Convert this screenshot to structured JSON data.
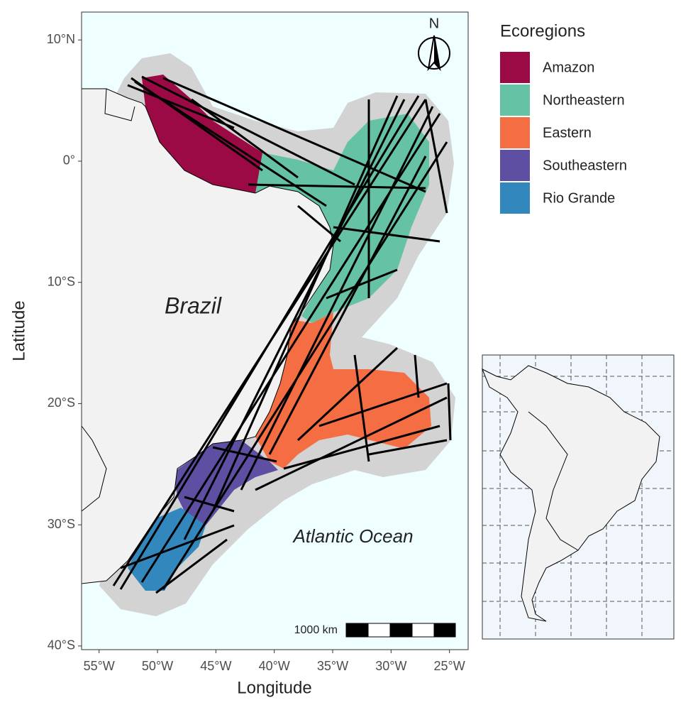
{
  "map": {
    "type": "map",
    "x_label": "Longitude",
    "y_label": "Latitude",
    "xlim": [
      -56.5,
      -23.4
    ],
    "ylim": [
      -40.3,
      12.3
    ],
    "xticks": [
      {
        "value": -55,
        "label": "55°W"
      },
      {
        "value": -50,
        "label": "50°W"
      },
      {
        "value": -45,
        "label": "45°W"
      },
      {
        "value": -40,
        "label": "40°W"
      },
      {
        "value": -35,
        "label": "35°W"
      },
      {
        "value": -30,
        "label": "30°W"
      },
      {
        "value": -25,
        "label": "25°W"
      }
    ],
    "yticks": [
      {
        "value": 10,
        "label": "10°N"
      },
      {
        "value": 0,
        "label": "0°"
      },
      {
        "value": -10,
        "label": "10°S"
      },
      {
        "value": -20,
        "label": "20°S"
      },
      {
        "value": -30,
        "label": "30°S"
      },
      {
        "value": -40,
        "label": "40°S"
      }
    ],
    "legend_title": "Ecoregions",
    "legend": [
      {
        "name": "Amazon",
        "color": "#9b0a45"
      },
      {
        "name": "Northeastern",
        "color": "#66c2a5"
      },
      {
        "name": "Eastern",
        "color": "#f46d43"
      },
      {
        "name": "Southeastern",
        "color": "#5e4fa2"
      },
      {
        "name": "Rio Grande",
        "color": "#3288bd"
      }
    ],
    "land_label": "Brazil",
    "ocean_label": "Atlantic Ocean",
    "scale_label": "1000 km",
    "north_label": "N"
  }
}
